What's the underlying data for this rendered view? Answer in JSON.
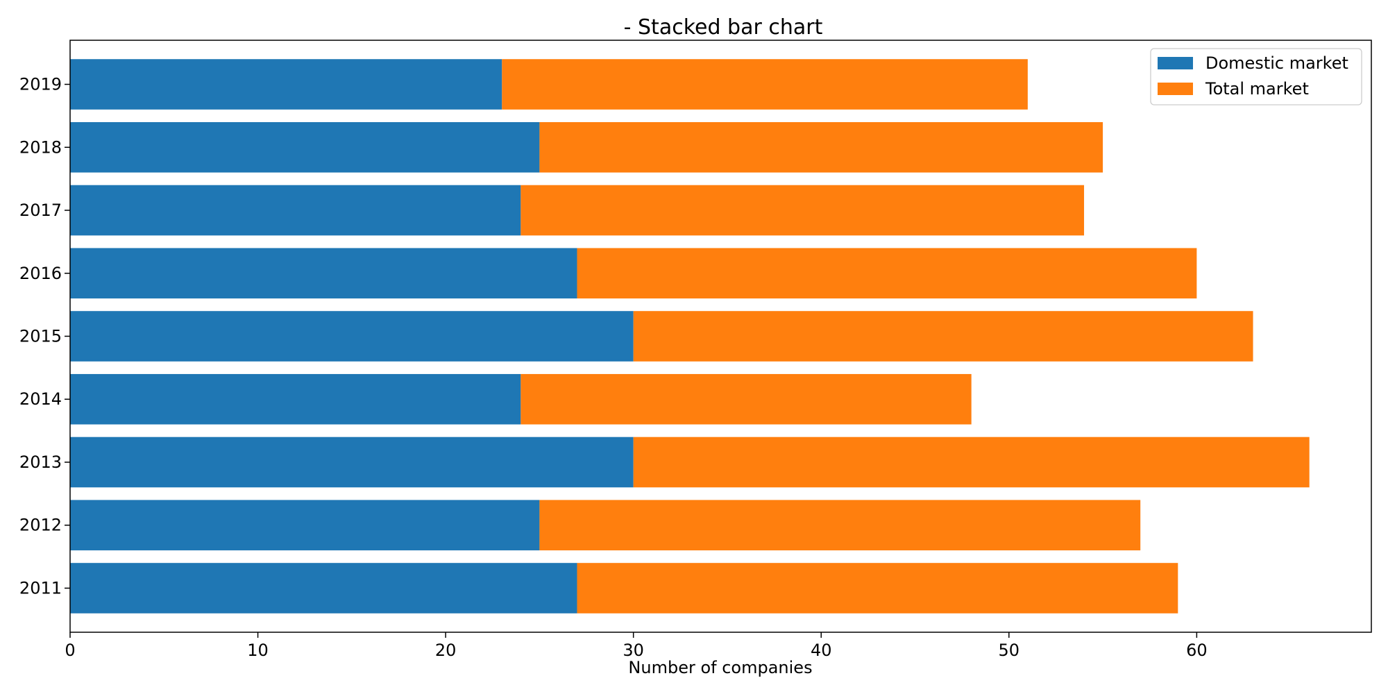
{
  "chart_data": {
    "type": "bar",
    "orientation": "horizontal",
    "stacked": true,
    "title": "- Stacked bar chart",
    "xlabel": "Number of companies",
    "ylabel": "",
    "categories": [
      "2011",
      "2012",
      "2013",
      "2014",
      "2015",
      "2016",
      "2017",
      "2018",
      "2019"
    ],
    "series": [
      {
        "name": "Domestic market",
        "color": "#1f77b4",
        "values": [
          27,
          25,
          30,
          24,
          30,
          27,
          24,
          25,
          23
        ]
      },
      {
        "name": "Total market",
        "color": "#ff7f0e",
        "values": [
          32,
          32,
          36,
          24,
          33,
          33,
          30,
          30,
          28
        ]
      }
    ],
    "xlim": [
      0,
      69.3
    ],
    "xticks": [
      0,
      10,
      20,
      30,
      40,
      50,
      60
    ],
    "grid": false,
    "legend_position": "top-right"
  }
}
